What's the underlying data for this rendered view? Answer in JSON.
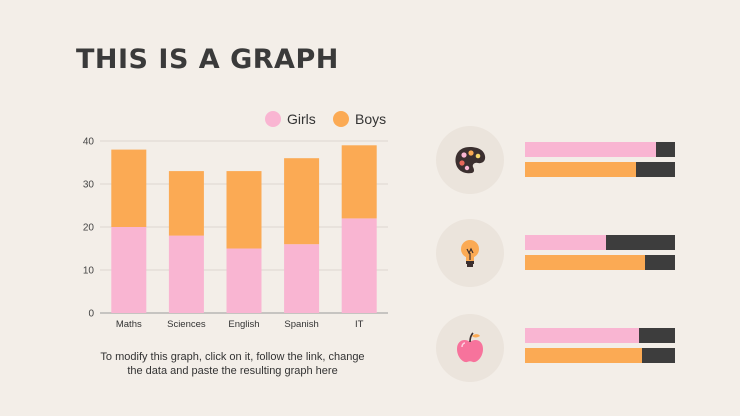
{
  "title": "THIS IS A GRAPH",
  "caption": "To modify this graph, click on it, follow the link, change the data and paste the resulting graph here",
  "colors": {
    "girls": "#f9b5d2",
    "boys": "#fbaa54",
    "track": "#3d3d3d",
    "background": "#f3eee8"
  },
  "chart_data": {
    "type": "bar",
    "stacked": true,
    "categories": [
      "Maths",
      "Sciences",
      "English",
      "Spanish",
      "IT"
    ],
    "series": [
      {
        "name": "Girls",
        "color": "#f9b5d2",
        "values": [
          20,
          18,
          15,
          16,
          22
        ]
      },
      {
        "name": "Boys",
        "color": "#fbaa54",
        "values": [
          18,
          15,
          18,
          20,
          17
        ]
      }
    ],
    "yticks": [
      0,
      10,
      20,
      30,
      40
    ],
    "ylim": [
      0,
      40
    ],
    "grid": true,
    "legend": "top-right"
  },
  "side_rows": [
    {
      "icon": "palette-icon",
      "bars": [
        {
          "series": "Girls",
          "fraction": 0.87
        },
        {
          "series": "Boys",
          "fraction": 0.74
        }
      ]
    },
    {
      "icon": "lightbulb-icon",
      "bars": [
        {
          "series": "Girls",
          "fraction": 0.54
        },
        {
          "series": "Boys",
          "fraction": 0.8
        }
      ]
    },
    {
      "icon": "apple-icon",
      "bars": [
        {
          "series": "Girls",
          "fraction": 0.76
        },
        {
          "series": "Boys",
          "fraction": 0.78
        }
      ]
    }
  ]
}
